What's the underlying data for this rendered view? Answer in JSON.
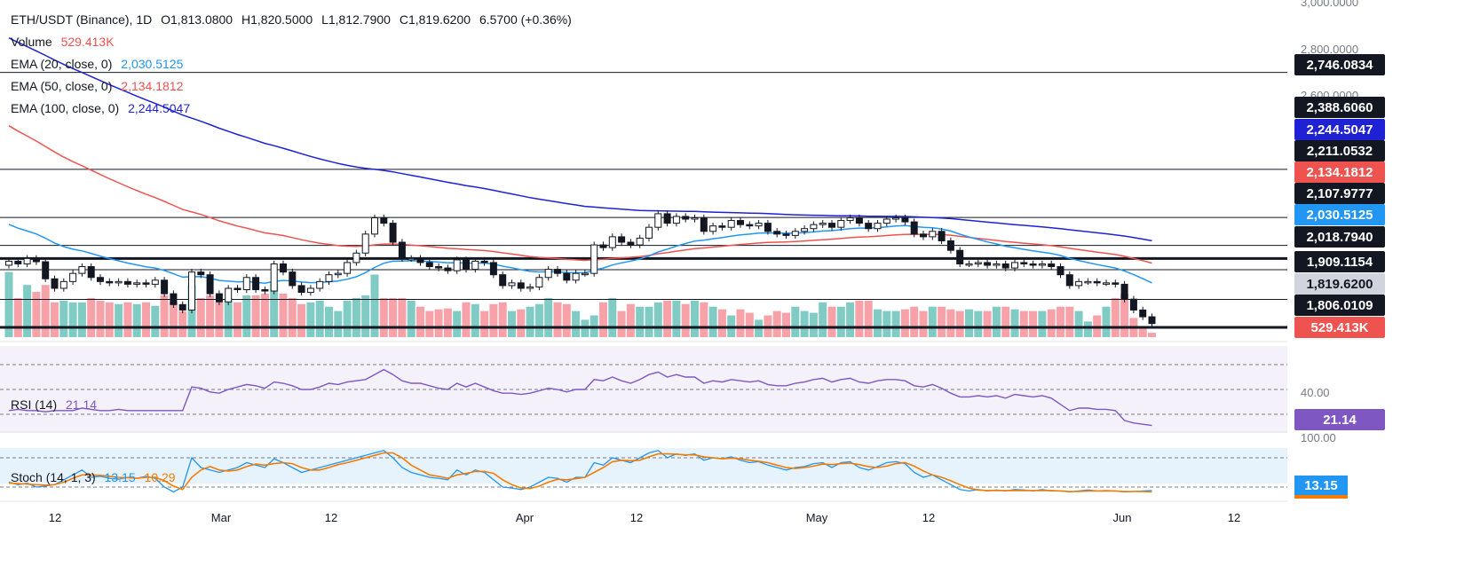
{
  "header": {
    "symbol": "ETH/USDT (Binance), 1D",
    "open_label": "O",
    "open": "1,813.0800",
    "high_label": "H",
    "high": "1,820.5000",
    "low_label": "L",
    "low": "1,812.7900",
    "close_label": "C",
    "close": "1,819.6200",
    "change": "6.5700 (+0.36%)"
  },
  "indicators": {
    "volume": {
      "label": "Volume",
      "value": "529.413K"
    },
    "ema20": {
      "label": "EMA (20, close, 0)",
      "value": "2,030.5125"
    },
    "ema50": {
      "label": "EMA (50, close, 0)",
      "value": "2,134.1812"
    },
    "ema100": {
      "label": "EMA (100, close, 0)",
      "value": "2,244.5047"
    },
    "rsi": {
      "label": "RSI (14)",
      "value": "21.14"
    },
    "stoch": {
      "label": "Stoch (14, 1, 3)",
      "k": "13.15",
      "d": "10.29"
    }
  },
  "colors": {
    "up": "#26a69a",
    "down": "#000000",
    "vol_up": "#80cbc4",
    "vol_down": "#f7a1a8",
    "ema20": "#2196f3",
    "ema50": "#ef5350",
    "ema100": "#1e22d4",
    "rsi": "#7e57c2",
    "stoch_k": "#2196f3",
    "stoch_d": "#f57c00"
  },
  "chart_data": [
    {
      "type": "candlestick",
      "title": "ETH/USDT (Binance), 1D",
      "x_ticks": [
        "12",
        "Mar",
        "12",
        "Apr",
        "12",
        "May",
        "12",
        "Jun",
        "12"
      ],
      "y_ticks": [
        "3,000.0000",
        "2,800.0000",
        "2,600.0000"
      ],
      "ylim": [
        1770,
        3000
      ],
      "last_price": "1,819.6200",
      "horizontal_levels": [
        {
          "value": 2746.0834,
          "label": "2,746.0834",
          "bold": false
        },
        {
          "value": 2388.606,
          "label": "2,388.6060",
          "bold": false
        },
        {
          "value": 2211.0532,
          "label": "2,211.0532",
          "bold": false
        },
        {
          "value": 2107.9777,
          "label": "2,107.9777",
          "bold": false
        },
        {
          "value": 2018.794,
          "label": "2,018.7940",
          "bold": false
        },
        {
          "value": 1909.1154,
          "label": "1,909.1154",
          "bold": false
        },
        {
          "value": 1806.0109,
          "label": "1,806.0109",
          "bold": true
        }
      ],
      "bold_level_2060": 2060,
      "ema_labels": [
        {
          "name": "EMA 100",
          "value": 2244.5047,
          "label": "2,244.5047"
        },
        {
          "name": "EMA 50",
          "value": 2134.1812,
          "label": "2,134.1812"
        },
        {
          "name": "EMA 20",
          "value": 2030.5125,
          "label": "2,030.5125"
        }
      ],
      "closes": [
        2050,
        2040,
        2060,
        2048,
        1985,
        1950,
        1975,
        2005,
        2030,
        1990,
        1975,
        1970,
        1975,
        1965,
        1970,
        1965,
        1980,
        1930,
        1890,
        1870,
        2010,
        2000,
        1930,
        1900,
        1950,
        1945,
        1990,
        1945,
        1940,
        2040,
        2010,
        1960,
        1935,
        1950,
        1975,
        2000,
        2005,
        2045,
        2080,
        2150,
        2210,
        2190,
        2120,
        2060,
        2060,
        2045,
        2030,
        2025,
        2015,
        2055,
        2020,
        2050,
        2045,
        2000,
        1960,
        1970,
        1950,
        1955,
        1990,
        2020,
        2005,
        1980,
        2005,
        2005,
        2110,
        2100,
        2140,
        2120,
        2110,
        2135,
        2175,
        2225,
        2190,
        2215,
        2205,
        2210,
        2160,
        2180,
        2175,
        2200,
        2185,
        2180,
        2190,
        2160,
        2150,
        2145,
        2160,
        2170,
        2185,
        2190,
        2175,
        2200,
        2210,
        2190,
        2170,
        2190,
        2205,
        2210,
        2195,
        2150,
        2140,
        2160,
        2125,
        2090,
        2040,
        2040,
        2045,
        2035,
        2040,
        2025,
        2045,
        2040,
        2035,
        2040,
        2030,
        2000,
        1960,
        1975,
        1975,
        1970,
        1970,
        1965,
        1910,
        1870,
        1845,
        1820
      ]
    },
    {
      "type": "bar",
      "title": "Volume",
      "value": "529.413K",
      "values": [
        0.75,
        0.45,
        0.6,
        0.52,
        0.6,
        0.4,
        0.42,
        0.4,
        0.4,
        0.45,
        0.42,
        0.4,
        0.38,
        0.4,
        0.38,
        0.4,
        0.36,
        0.48,
        0.4,
        0.3,
        0.6,
        0.45,
        0.48,
        0.4,
        0.42,
        0.4,
        0.48,
        0.48,
        0.5,
        0.62,
        0.5,
        0.45,
        0.38,
        0.4,
        0.42,
        0.35,
        0.3,
        0.42,
        0.45,
        0.48,
        0.72,
        0.45,
        0.45,
        0.45,
        0.42,
        0.35,
        0.3,
        0.32,
        0.33,
        0.3,
        0.4,
        0.38,
        0.3,
        0.38,
        0.4,
        0.3,
        0.32,
        0.35,
        0.38,
        0.45,
        0.4,
        0.38,
        0.3,
        0.2,
        0.25,
        0.4,
        0.45,
        0.3,
        0.38,
        0.35,
        0.35,
        0.4,
        0.42,
        0.42,
        0.38,
        0.42,
        0.4,
        0.35,
        0.32,
        0.25,
        0.32,
        0.28,
        0.2,
        0.25,
        0.3,
        0.28,
        0.35,
        0.3,
        0.28,
        0.4,
        0.35,
        0.35,
        0.4,
        0.42,
        0.42,
        0.32,
        0.3,
        0.3,
        0.32,
        0.35,
        0.3,
        0.35,
        0.35,
        0.32,
        0.3,
        0.32,
        0.3,
        0.3,
        0.35,
        0.35,
        0.32,
        0.3,
        0.3,
        0.3,
        0.32,
        0.35,
        0.35,
        0.3,
        0.18,
        0.25,
        0.35,
        0.45,
        0.5,
        0.22,
        0.1,
        0.05
      ],
      "ylim": [
        0,
        1
      ]
    },
    {
      "type": "line",
      "title": "RSI (14)",
      "value": "21.14",
      "y_ticks": [
        "40.00"
      ],
      "ylim": [
        15,
        85
      ],
      "bands": [
        30,
        50,
        70
      ],
      "values": [
        33,
        34,
        33,
        33,
        32,
        33,
        33,
        33,
        35,
        34,
        33,
        33,
        34,
        33,
        33,
        33,
        33,
        33,
        33,
        33,
        52,
        51,
        48,
        47,
        50,
        52,
        54,
        53,
        51,
        56,
        55,
        53,
        50,
        50,
        52,
        55,
        54,
        56,
        57,
        58,
        62,
        66,
        62,
        57,
        55,
        55,
        53,
        51,
        50,
        55,
        52,
        55,
        52,
        49,
        47,
        47,
        46,
        47,
        49,
        51,
        50,
        48,
        50,
        50,
        58,
        57,
        60,
        57,
        55,
        58,
        62,
        64,
        60,
        62,
        60,
        60,
        55,
        57,
        56,
        58,
        57,
        56,
        57,
        54,
        53,
        53,
        55,
        56,
        58,
        59,
        56,
        58,
        59,
        56,
        55,
        57,
        58,
        58,
        57,
        53,
        52,
        54,
        51,
        47,
        44,
        44,
        45,
        44,
        45,
        43,
        46,
        45,
        44,
        45,
        43,
        38,
        33,
        35,
        35,
        34,
        34,
        33,
        25,
        23,
        22,
        21
      ]
    },
    {
      "type": "line",
      "title": "Stoch (14, 1, 3)",
      "k_value": "13.15",
      "d_value": "10.29",
      "y_ticks": [
        "100.00"
      ],
      "ylim": [
        0,
        100
      ],
      "bands": [
        20,
        80
      ],
      "k": [
        30,
        25,
        28,
        20,
        22,
        25,
        35,
        45,
        55,
        40,
        42,
        38,
        36,
        40,
        38,
        42,
        38,
        20,
        10,
        20,
        80,
        60,
        55,
        50,
        55,
        60,
        70,
        65,
        60,
        78,
        70,
        60,
        50,
        55,
        60,
        65,
        70,
        75,
        80,
        85,
        90,
        95,
        80,
        60,
        50,
        45,
        40,
        38,
        35,
        55,
        45,
        55,
        50,
        35,
        20,
        18,
        15,
        20,
        30,
        40,
        38,
        30,
        40,
        40,
        70,
        65,
        80,
        75,
        70,
        80,
        90,
        95,
        80,
        88,
        85,
        88,
        75,
        80,
        78,
        82,
        75,
        70,
        72,
        65,
        60,
        55,
        60,
        62,
        68,
        70,
        60,
        70,
        72,
        60,
        55,
        62,
        70,
        72,
        68,
        50,
        40,
        45,
        35,
        25,
        15,
        12,
        15,
        12,
        14,
        12,
        15,
        14,
        12,
        15,
        12,
        12,
        10,
        12,
        14,
        12,
        13,
        12,
        10,
        11,
        12,
        13
      ],
      "d": [
        28,
        27,
        26,
        25,
        24,
        25,
        30,
        38,
        45,
        45,
        44,
        42,
        40,
        39,
        38,
        40,
        40,
        33,
        22,
        15,
        40,
        55,
        62,
        55,
        53,
        55,
        62,
        67,
        65,
        68,
        70,
        68,
        60,
        55,
        55,
        60,
        66,
        70,
        75,
        80,
        85,
        90,
        90,
        80,
        65,
        55,
        45,
        42,
        38,
        45,
        48,
        52,
        52,
        48,
        35,
        25,
        18,
        17,
        22,
        30,
        36,
        35,
        37,
        40,
        50,
        60,
        72,
        75,
        74,
        75,
        82,
        88,
        88,
        87,
        86,
        86,
        82,
        80,
        78,
        79,
        78,
        75,
        73,
        70,
        65,
        60,
        58,
        60,
        63,
        67,
        66,
        68,
        69,
        66,
        62,
        60,
        63,
        68,
        70,
        63,
        53,
        45,
        40,
        33,
        25,
        18,
        14,
        13,
        13,
        13,
        13,
        13,
        13,
        13,
        13,
        12,
        11,
        11,
        12,
        12,
        12,
        12,
        11,
        11,
        11,
        10
      ]
    }
  ]
}
